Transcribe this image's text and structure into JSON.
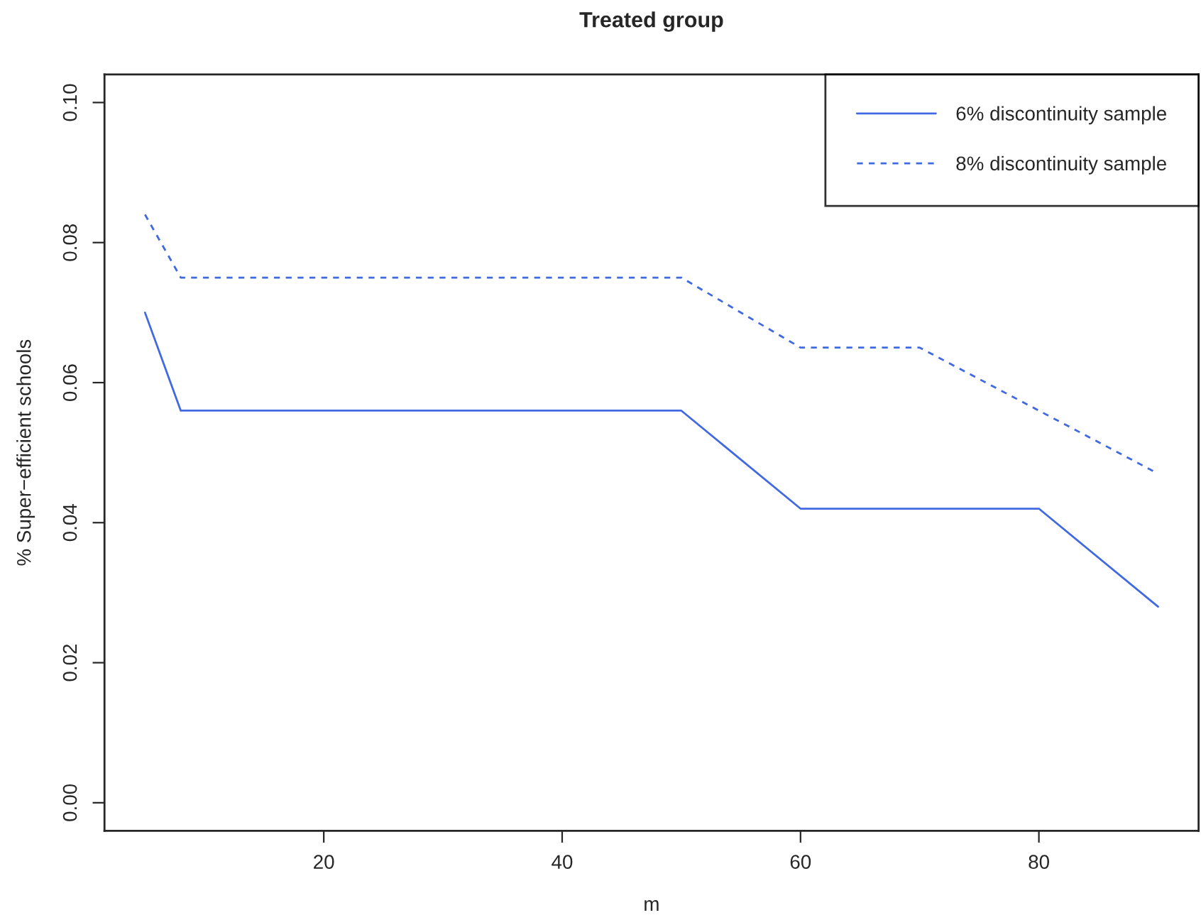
{
  "chart_data": {
    "type": "line",
    "title": "Treated group",
    "xlabel": "m",
    "ylabel": "% Super−efficient schools",
    "x": [
      5,
      8,
      50,
      60,
      70,
      80,
      90
    ],
    "series": [
      {
        "name": "6% discontinuity sample",
        "color": "#4169e1",
        "line_style": "solid",
        "values": [
          0.07,
          0.056,
          0.056,
          0.042,
          0.042,
          0.042,
          0.028
        ]
      },
      {
        "name": "8% discontinuity sample",
        "color": "#4169e1",
        "line_style": "dashed",
        "values": [
          0.084,
          0.075,
          0.075,
          0.065,
          0.065,
          0.056,
          0.047
        ]
      }
    ],
    "xlim": [
      1.6,
      93.4
    ],
    "xticks": [
      20,
      40,
      60,
      80
    ],
    "ylim": [
      -0.004,
      0.104
    ],
    "yticks": [
      {
        "value": 0,
        "label": "0.00"
      },
      {
        "value": 0.02,
        "label": "0.02"
      },
      {
        "value": 0.04,
        "label": "0.04"
      },
      {
        "value": 0.06,
        "label": "0.06"
      },
      {
        "value": 0.08,
        "label": "0.08"
      },
      {
        "value": 0.1,
        "label": "0.10"
      }
    ],
    "grid": false,
    "legend": "top right",
    "marker": "none"
  }
}
